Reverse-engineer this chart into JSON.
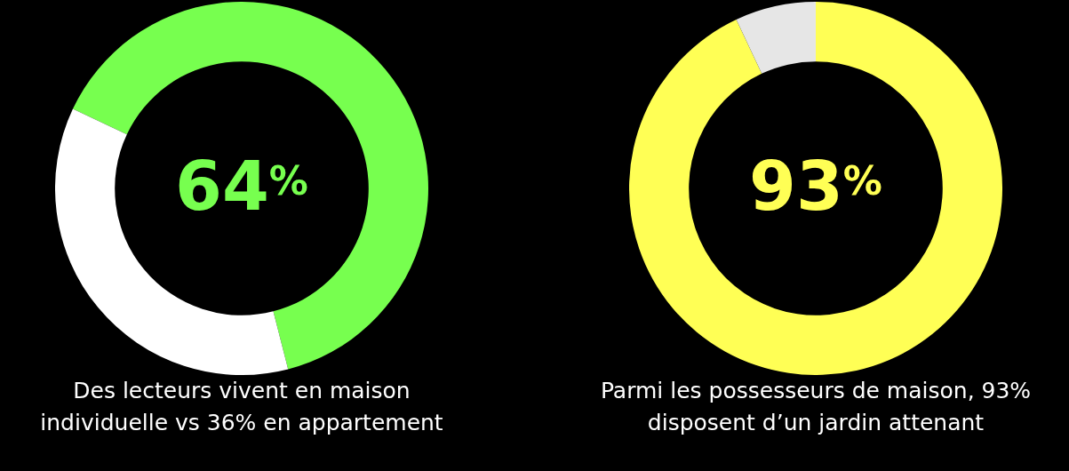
{
  "chart_data": [
    {
      "type": "donut",
      "categories": [
        null,
        null
      ],
      "values": [
        64,
        36
      ],
      "colors": [
        "#77ff4f",
        "#ffffff"
      ],
      "value_labels": [
        "64$^{%}$",
        null
      ],
      "legend": false,
      "annotations": [
        "Des lecteurs vivent en maison individuelle vs 36% en appartement"
      ]
    },
    {
      "type": "donut",
      "categories": [
        null,
        null
      ],
      "values": [
        93,
        7
      ],
      "colors": [
        "#ffff55",
        "#e6e6e6"
      ],
      "value_labels": [
        "93$^{%}$",
        null
      ],
      "legend": false,
      "annotations": [
        "Parmi les possesseurs de maison, 93% disposent d’un jardin attenant"
      ]
    }
  ]
}
